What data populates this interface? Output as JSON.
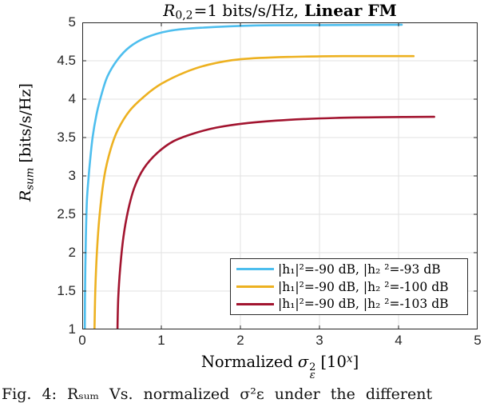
{
  "title": {
    "r": "R",
    "sub": "0,2",
    "mid": "=1 bits/s/Hz,",
    "bold": "Linear FM"
  },
  "axes": {
    "ylabel": {
      "r": "R",
      "sub": "sum",
      "rest": "[bits/s/Hz]"
    },
    "xlabel": {
      "pre": "Normalized",
      "sigma": "σ",
      "sup": "2",
      "sub": "ε",
      "open": "[10",
      "exp": "x",
      "close": "]"
    },
    "yticks": [
      "5",
      "4.5",
      "4",
      "3.5",
      "3",
      "2.5",
      "2",
      "1.5",
      "1"
    ],
    "xticks": [
      "0",
      "1",
      "2",
      "3",
      "4",
      "5"
    ]
  },
  "caption": "Fig. 4: Rₛᵤₘ Vs. normalized σ²ε under the different",
  "chart_data": {
    "type": "line",
    "title": "R_{0,2}=1 bits/s/Hz, Linear FM",
    "xlabel": "Normalized σ_ε^2 [10^x]",
    "ylabel": "R_sum [bits/s/Hz]",
    "xlim": [
      0,
      5
    ],
    "ylim": [
      1,
      5
    ],
    "xticks": [
      0,
      1,
      2,
      3,
      4,
      5
    ],
    "yticks": [
      1,
      1.5,
      2,
      2.5,
      3,
      3.5,
      4,
      4.5,
      5
    ],
    "grid": true,
    "legend_position": "inside lower right",
    "grid_color": "#e2e2e2",
    "frame_color": "#262626",
    "series": [
      {
        "name": "|h₁|²=-90 dB, |h₂ ²=-93 dB",
        "color": "#4DBEEE",
        "asymptote": 4.97,
        "points": [
          [
            0.032,
            1.0
          ],
          [
            0.036,
            1.6
          ],
          [
            0.045,
            2.2
          ],
          [
            0.06,
            2.7
          ],
          [
            0.09,
            3.1
          ],
          [
            0.13,
            3.5
          ],
          [
            0.18,
            3.8
          ],
          [
            0.24,
            4.05
          ],
          [
            0.32,
            4.3
          ],
          [
            0.45,
            4.52
          ],
          [
            0.6,
            4.68
          ],
          [
            0.8,
            4.8
          ],
          [
            1.1,
            4.89
          ],
          [
            1.5,
            4.93
          ],
          [
            2.2,
            4.96
          ],
          [
            3.0,
            4.965
          ],
          [
            4.04,
            4.97
          ]
        ]
      },
      {
        "name": "|h₁|²=-90 dB, |h₂ ²=-100 dB",
        "color": "#EDB120",
        "asymptote": 4.56,
        "points": [
          [
            0.155,
            1.0
          ],
          [
            0.165,
            1.5
          ],
          [
            0.185,
            2.0
          ],
          [
            0.22,
            2.5
          ],
          [
            0.28,
            3.0
          ],
          [
            0.36,
            3.35
          ],
          [
            0.45,
            3.6
          ],
          [
            0.6,
            3.85
          ],
          [
            0.8,
            4.05
          ],
          [
            1.0,
            4.2
          ],
          [
            1.3,
            4.35
          ],
          [
            1.6,
            4.45
          ],
          [
            2.0,
            4.52
          ],
          [
            2.6,
            4.55
          ],
          [
            3.3,
            4.56
          ],
          [
            4.19,
            4.56
          ]
        ]
      },
      {
        "name": "|h₁|²=-90 dB, |h₂ ²=-103 dB",
        "color": "#A2142F",
        "asymptote": 3.77,
        "points": [
          [
            0.445,
            1.0
          ],
          [
            0.455,
            1.4
          ],
          [
            0.48,
            1.8
          ],
          [
            0.52,
            2.2
          ],
          [
            0.58,
            2.55
          ],
          [
            0.66,
            2.85
          ],
          [
            0.78,
            3.1
          ],
          [
            0.95,
            3.3
          ],
          [
            1.15,
            3.45
          ],
          [
            1.4,
            3.55
          ],
          [
            1.7,
            3.63
          ],
          [
            2.1,
            3.69
          ],
          [
            2.6,
            3.73
          ],
          [
            3.2,
            3.755
          ],
          [
            3.8,
            3.765
          ],
          [
            4.45,
            3.77
          ]
        ]
      }
    ]
  }
}
